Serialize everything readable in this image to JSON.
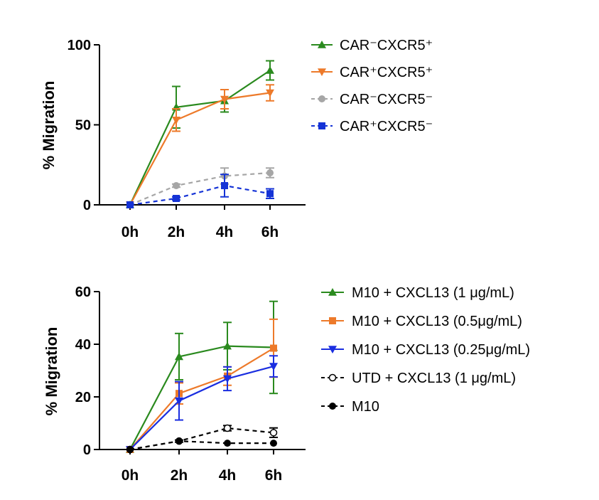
{
  "chart_data": [
    {
      "type": "line",
      "title": "",
      "xlabel": "",
      "ylabel": "% Migration",
      "categories": [
        "0h",
        "2h",
        "4h",
        "6h"
      ],
      "x": [
        0,
        2,
        4,
        6
      ],
      "ylim": [
        0,
        100
      ],
      "yticks": [
        0,
        50,
        100
      ],
      "grid": false,
      "legend_position": "right",
      "series": [
        {
          "name": "CAR⁻CXCR5⁺",
          "marker": "triangle-up",
          "line": "solid",
          "color": "#2a8a1e",
          "values": [
            0,
            61,
            65,
            84
          ],
          "errors": [
            0,
            13,
            7,
            6
          ]
        },
        {
          "name": "CAR⁺CXCR5⁺",
          "marker": "triangle-down",
          "line": "solid",
          "color": "#ed7a2a",
          "values": [
            0,
            53,
            66,
            70
          ],
          "errors": [
            0,
            7,
            6,
            5
          ]
        },
        {
          "name": "CAR⁻CXCR5⁻",
          "marker": "circle",
          "line": "dashed",
          "color": "#a6a6a6",
          "values": [
            0,
            12,
            18,
            20
          ],
          "errors": [
            0,
            1,
            5,
            3
          ]
        },
        {
          "name": "CAR⁺CXCR5⁻",
          "marker": "square",
          "line": "dashed",
          "color": "#1533d6",
          "values": [
            0,
            4,
            12,
            7
          ],
          "errors": [
            0,
            1,
            7,
            3
          ]
        }
      ]
    },
    {
      "type": "line",
      "title": "",
      "xlabel": "",
      "ylabel": "% Migration",
      "categories": [
        "0h",
        "2h",
        "4h",
        "6h"
      ],
      "x": [
        0,
        2,
        4,
        6
      ],
      "ylim": [
        0,
        60
      ],
      "yticks": [
        0,
        20,
        40,
        60
      ],
      "grid": false,
      "legend_position": "right",
      "series": [
        {
          "name": "M10 + CXCL13 (1 μg/mL)",
          "marker": "triangle-up",
          "line": "solid",
          "color": "#2a8a1e",
          "values": [
            0,
            35.3,
            39.3,
            38.8
          ],
          "errors": [
            0,
            8.8,
            9,
            17.5
          ]
        },
        {
          "name": "M10 + CXCL13 (0.5μg/mL)",
          "marker": "square",
          "line": "solid",
          "color": "#ed7a2a",
          "values": [
            0,
            21.3,
            27.9,
            38.5
          ],
          "errors": [
            0,
            4,
            3.5,
            11
          ]
        },
        {
          "name": "M10 + CXCL13 (0.25μg/mL)",
          "marker": "triangle-down",
          "line": "solid",
          "color": "#1a2ee0",
          "values": [
            0,
            18.5,
            26.9,
            31.6
          ],
          "errors": [
            0,
            7.3,
            4.5,
            4
          ]
        },
        {
          "name": "UTD + CXCL13 (1 μg/mL)",
          "marker": "circle-open",
          "line": "dashed",
          "color": "#000000",
          "values": [
            0,
            3.2,
            8.1,
            6.4
          ],
          "errors": [
            0,
            0.4,
            1,
            1.8
          ]
        },
        {
          "name": "M10",
          "marker": "circle",
          "line": "dashed",
          "color": "#000000",
          "values": [
            0,
            3.2,
            2.4,
            2.4
          ],
          "errors": [
            0,
            0,
            0,
            0
          ]
        }
      ]
    }
  ]
}
